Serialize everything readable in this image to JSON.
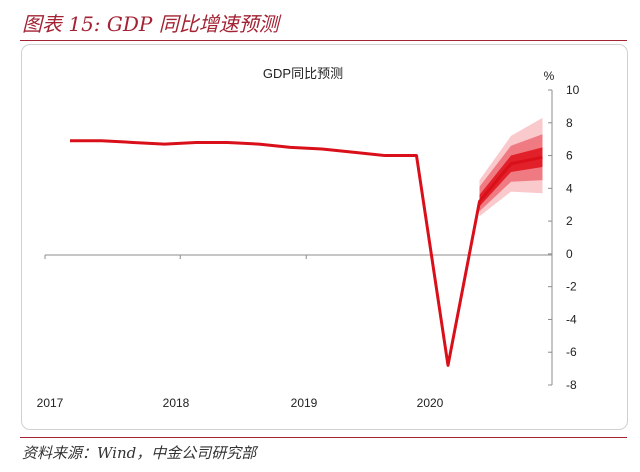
{
  "figure": {
    "title": "图表 15: GDP 同比增速预测",
    "source": "资料来源：Wind，中金公司研究部"
  },
  "colors": {
    "accent": "#a32334",
    "series": "#d9101a",
    "band_inner": "#e2202a",
    "band_mid": "#f07a82",
    "band_outer": "#f9c9cc"
  },
  "chart_data": {
    "type": "line",
    "title": "GDP同比预测",
    "y_unit": "%",
    "ylim": [
      -8,
      10
    ],
    "y_ticks": [
      10,
      8,
      6,
      4,
      2,
      0,
      -2,
      -4,
      -6,
      -8
    ],
    "y_tick_labels": [
      "10",
      "8",
      "6",
      "4",
      "2",
      "0",
      "-2",
      "-4",
      "-6",
      "-8"
    ],
    "x_tick_labels": [
      "2017",
      "2018",
      "2019",
      "2020"
    ],
    "y_axis_position": "right",
    "grid": false,
    "series": [
      {
        "x": [
          "2017Q1",
          "2017Q2",
          "2017Q3",
          "2017Q4",
          "2018Q1",
          "2018Q2",
          "2018Q3",
          "2018Q4",
          "2019Q1",
          "2019Q2",
          "2019Q3",
          "2019Q4",
          "2020Q1",
          "2020Q2",
          "2020Q3",
          "2020Q4"
        ],
        "values": [
          6.9,
          6.9,
          6.8,
          6.7,
          6.8,
          6.8,
          6.7,
          6.5,
          6.4,
          6.2,
          6.0,
          6.0,
          -6.8,
          3.2,
          5.5,
          5.9
        ]
      }
    ],
    "forecast_bands": {
      "x": [
        "2020Q2",
        "2020Q3",
        "2020Q4"
      ],
      "inner_low": [
        2.9,
        5.0,
        5.3
      ],
      "inner_high": [
        3.6,
        6.0,
        6.5
      ],
      "mid_low": [
        2.6,
        4.4,
        4.5
      ],
      "mid_high": [
        4.1,
        6.6,
        7.3
      ],
      "outer_low": [
        2.3,
        3.8,
        3.7
      ],
      "outer_high": [
        4.5,
        7.2,
        8.3
      ]
    }
  }
}
